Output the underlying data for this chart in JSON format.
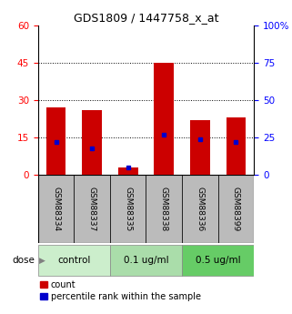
{
  "title": "GDS1809 / 1447758_x_at",
  "samples": [
    "GSM88334",
    "GSM88337",
    "GSM88335",
    "GSM88338",
    "GSM88336",
    "GSM88399"
  ],
  "counts": [
    27,
    26,
    3,
    45,
    22,
    23
  ],
  "percentile_ranks": [
    22,
    18,
    5,
    27,
    24,
    22
  ],
  "dose_groups": [
    {
      "label": "control",
      "span": [
        0,
        2
      ],
      "color": "#cceecc"
    },
    {
      "label": "0.1 ug/ml",
      "span": [
        2,
        4
      ],
      "color": "#aaddaa"
    },
    {
      "label": "0.5 ug/ml",
      "span": [
        4,
        6
      ],
      "color": "#66cc66"
    }
  ],
  "ylim_left": [
    0,
    60
  ],
  "ylim_right": [
    0,
    100
  ],
  "yticks_left": [
    0,
    15,
    30,
    45,
    60
  ],
  "yticks_right": [
    0,
    25,
    50,
    75,
    100
  ],
  "bar_color": "#cc0000",
  "percentile_color": "#0000cc",
  "bar_width": 0.55,
  "background_color": "#ffffff",
  "label_area_color": "#bbbbbb",
  "dose_label": "dose",
  "legend_count_label": "count",
  "legend_percentile_label": "percentile rank within the sample",
  "title_fontsize": 9,
  "tick_fontsize": 7.5,
  "sample_fontsize": 6.5,
  "dose_fontsize": 7.5,
  "legend_fontsize": 7
}
